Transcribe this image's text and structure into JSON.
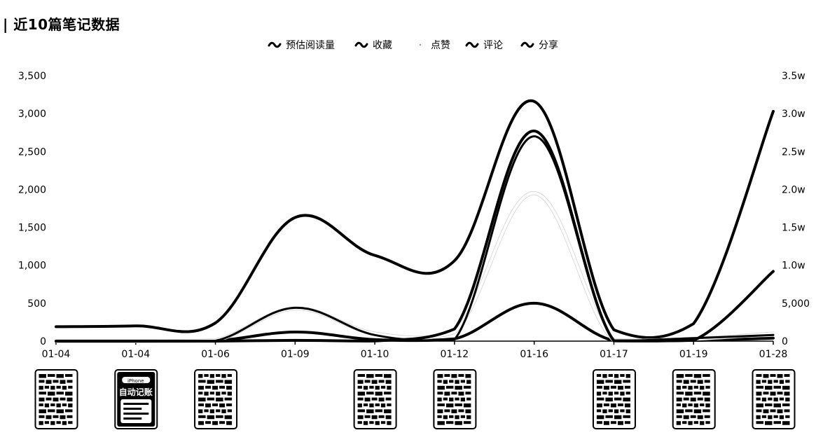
{
  "header": {
    "title": "| 近10篇笔记数据"
  },
  "chart_data": {
    "type": "line",
    "x": [
      "01-04",
      "01-04",
      "01-06",
      "01-09",
      "01-10",
      "01-12",
      "01-16",
      "01-17",
      "01-19",
      "01-28"
    ],
    "left_axis": {
      "ticks": [
        "0",
        "500",
        "1,000",
        "1,500",
        "2,000",
        "2,500",
        "3,000",
        "3,500"
      ],
      "ylim": [
        0,
        3500
      ]
    },
    "right_axis": {
      "ticks": [
        "0",
        "5,000",
        "1.0w",
        "1.5w",
        "2.0w",
        "2.5w",
        "3.0w",
        "3.5w"
      ],
      "ylim": [
        0,
        35000
      ]
    },
    "series": [
      {
        "name": "预估阅读量",
        "axis": "right",
        "values": [
          1900,
          2000,
          2400,
          16300,
          11300,
          10600,
          31600,
          1500,
          2300,
          30300
        ],
        "color": "#000000",
        "width": 4
      },
      {
        "name": "收藏",
        "axis": "left",
        "values": [
          0,
          0,
          5,
          120,
          20,
          30,
          500,
          5,
          10,
          40
        ],
        "color": "#000000",
        "width": 4
      },
      {
        "name": "点赞",
        "axis": "left",
        "values": [
          0,
          0,
          10,
          430,
          100,
          120,
          1950,
          10,
          30,
          100
        ],
        "color": "#ffffff",
        "width": 4
      },
      {
        "name": "评论",
        "axis": "left",
        "values": [
          0,
          0,
          0,
          10,
          2,
          160,
          2770,
          5,
          10,
          920
        ],
        "color": "#000000",
        "width": 4
      },
      {
        "name": "分享",
        "axis": "left",
        "values": [
          0,
          0,
          5,
          440,
          80,
          20,
          2700,
          10,
          40,
          80
        ],
        "color": "#000000",
        "width": 3
      }
    ],
    "legend_position": "top-center",
    "grid": false,
    "thumbnails": [
      {
        "index": 0,
        "texts": []
      },
      {
        "index": 1,
        "texts": [
          "iPhone",
          "自动记账"
        ]
      },
      {
        "index": 2,
        "texts": []
      },
      {
        "index": 4,
        "texts": []
      },
      {
        "index": 5,
        "texts": []
      },
      {
        "index": 7,
        "texts": []
      },
      {
        "index": 8,
        "texts": []
      },
      {
        "index": 9,
        "texts": []
      }
    ]
  }
}
